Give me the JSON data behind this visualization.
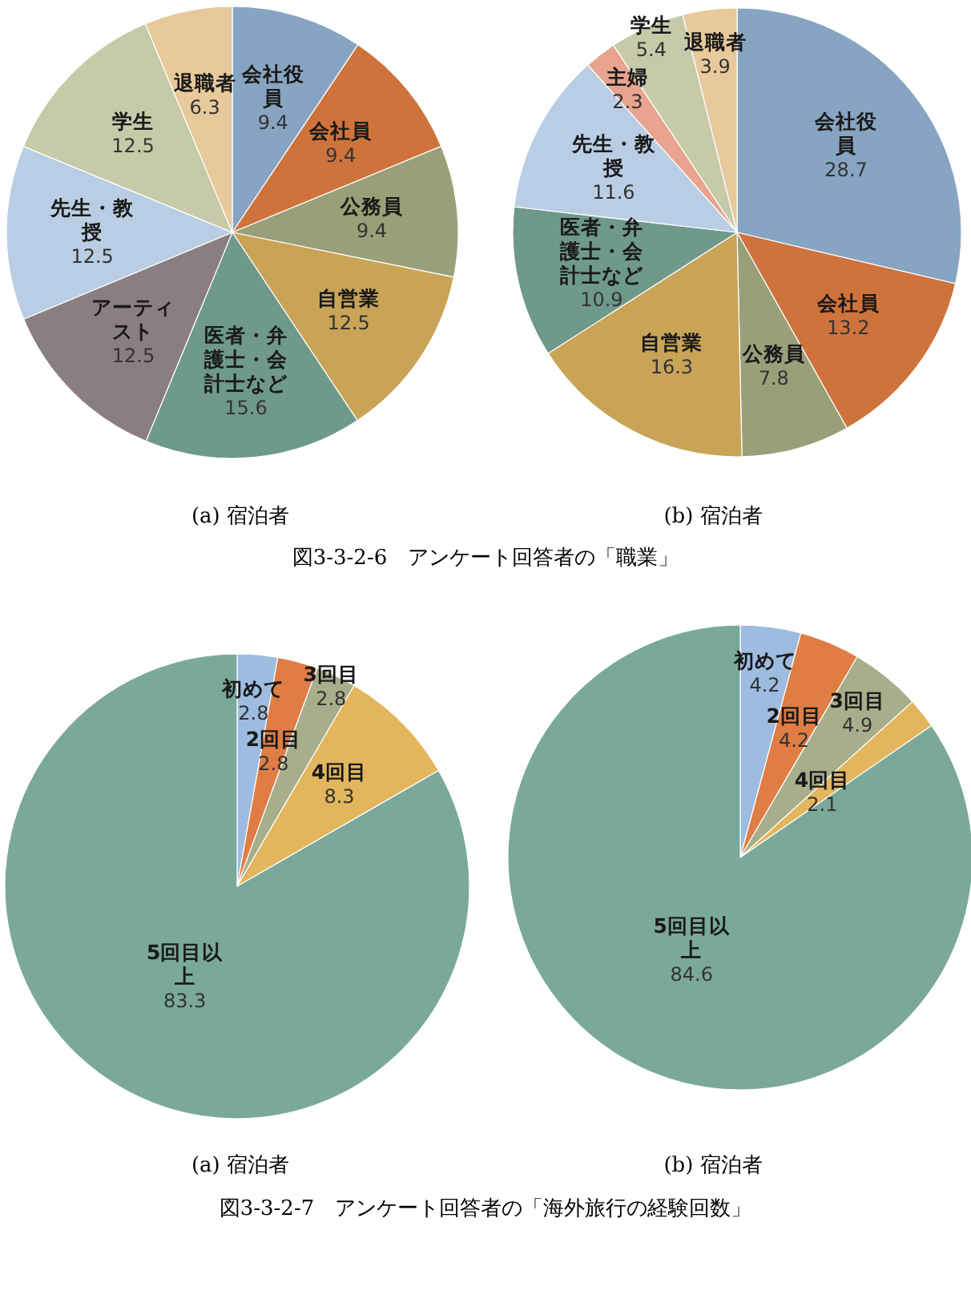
{
  "chart_data": [
    {
      "type": "pie",
      "title": "(a) 宿泊者",
      "annotations": [
        "図3-3-2-6　アンケート回答者の「職業」"
      ],
      "data_labels": true,
      "categories": [
        "会社役員",
        "会社員",
        "公務員",
        "自営業",
        "医者・弁護士・会計士など",
        "アーティスト",
        "先生・教授",
        "学生",
        "退職者"
      ],
      "values": [
        9.4,
        9.4,
        9.4,
        12.5,
        15.6,
        12.5,
        12.5,
        12.5,
        6.3
      ],
      "colors": [
        "#87a5c2",
        "#cf733d",
        "#999f78",
        "#c9a457",
        "#6f998a",
        "#8a7e80",
        "#b9cee4",
        "#c7caa9",
        "#e7c99b"
      ]
    },
    {
      "type": "pie",
      "title": "(b) 宿泊者",
      "data_labels": true,
      "categories": [
        "会社役員",
        "会社員",
        "公務員",
        "自営業",
        "医者・弁護士・会計士など",
        "先生・教授",
        "主婦",
        "学生",
        "退職者"
      ],
      "values": [
        28.7,
        13.2,
        7.8,
        16.3,
        10.9,
        11.6,
        2.3,
        5.4,
        3.9
      ],
      "colors": [
        "#87a5c2",
        "#cf733d",
        "#999f78",
        "#c9a457",
        "#6f998a",
        "#b9cee4",
        "#e8a48e",
        "#c7caa9",
        "#e7c99b"
      ]
    },
    {
      "type": "pie",
      "title": "(a) 宿泊者",
      "annotations": [
        "図3-3-2-7　アンケート回答者の「海外旅行の経験回数」"
      ],
      "data_labels": true,
      "categories": [
        "初めて",
        "2回目",
        "3回目",
        "4回目",
        "5回目以上"
      ],
      "values": [
        2.8,
        2.8,
        2.8,
        8.3,
        83.3
      ],
      "colors": [
        "#9dbce0",
        "#e07d45",
        "#a7ae8b",
        "#e3b65d",
        "#7aa99b"
      ]
    },
    {
      "type": "pie",
      "title": "(b) 宿泊者",
      "data_labels": true,
      "categories": [
        "初めて",
        "2回目",
        "3回目",
        "4回目",
        "5回目以上"
      ],
      "values": [
        4.2,
        4.2,
        4.9,
        2.1,
        84.6
      ],
      "colors": [
        "#9dbce0",
        "#e07d45",
        "#a7ae8b",
        "#e3b65d",
        "#7aa99b"
      ]
    }
  ]
}
